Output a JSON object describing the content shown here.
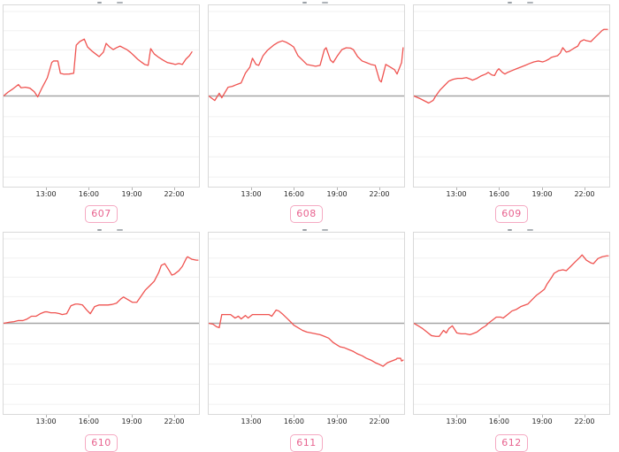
{
  "window": {
    "background": "#ffffff"
  },
  "colors": {
    "line": "#ef5350",
    "baseline": "#a6a6a6",
    "grid_line": "#f0f0f0",
    "plot_border": "#d9d9d9",
    "tick": "#b3b3b3",
    "tick_label": "#262626",
    "badge_text": "#e8638f",
    "badge_border": "#f5a9c2",
    "clipped_title_mark": "#9aa0a6"
  },
  "x_axis": {
    "tick_labels": [
      "13:00",
      "16:00",
      "19:00",
      "22:00"
    ],
    "tick_positions_pct": [
      22,
      43.7,
      65.5,
      87
    ],
    "x_range_estimate": [
      "10:00",
      "23:30"
    ]
  },
  "plot": {
    "grid_lines_pct": [
      3.4,
      14,
      24.6,
      35.3,
      61.4,
      72.5,
      83.6,
      94.7
    ],
    "baseline_pct": 50
  },
  "chart_data": [
    {
      "type": "line",
      "badge": "607",
      "title": "",
      "xlabel": "",
      "ylabel": "",
      "baseline_value": 0,
      "y_unit": "relative move vs. unlabeled baseline (% of plot height)",
      "points": [
        [
          0,
          0
        ],
        [
          2.2,
          2
        ],
        [
          4.9,
          4
        ],
        [
          7.6,
          6.3
        ],
        [
          9,
          4.5
        ],
        [
          11.2,
          4.8
        ],
        [
          13.5,
          4.3
        ],
        [
          15.7,
          2.4
        ],
        [
          17.5,
          -0.5
        ],
        [
          19.7,
          4.5
        ],
        [
          22.4,
          10
        ],
        [
          24.7,
          18.5
        ],
        [
          25.6,
          19.3
        ],
        [
          27.8,
          19.3
        ],
        [
          29.1,
          12.5
        ],
        [
          30.9,
          12
        ],
        [
          33.6,
          12.1
        ],
        [
          35.9,
          12.5
        ],
        [
          37.2,
          28
        ],
        [
          39,
          30
        ],
        [
          41.3,
          31.4
        ],
        [
          43,
          27
        ],
        [
          45.3,
          24.7
        ],
        [
          47.1,
          23.2
        ],
        [
          48.9,
          21.7
        ],
        [
          51.1,
          24.2
        ],
        [
          52.5,
          29
        ],
        [
          54.3,
          27
        ],
        [
          56.1,
          25.6
        ],
        [
          57.8,
          26.6
        ],
        [
          59.6,
          27.5
        ],
        [
          61.4,
          26.5
        ],
        [
          63.2,
          25.5
        ],
        [
          65,
          24
        ],
        [
          66.8,
          22.2
        ],
        [
          68.6,
          20.3
        ],
        [
          70.4,
          18.8
        ],
        [
          72.2,
          17.4
        ],
        [
          74,
          16.9
        ],
        [
          75.3,
          26.1
        ],
        [
          77.1,
          23.2
        ],
        [
          79.4,
          21.3
        ],
        [
          81.6,
          19.8
        ],
        [
          83.9,
          18.4
        ],
        [
          86.1,
          17.9
        ],
        [
          87.9,
          17.4
        ],
        [
          89.7,
          17.9
        ],
        [
          91.5,
          17.4
        ],
        [
          93.3,
          20.3
        ],
        [
          95.1,
          22.2
        ],
        [
          96.4,
          24.3
        ]
      ]
    },
    {
      "type": "line",
      "badge": "608",
      "title": "",
      "xlabel": "",
      "ylabel": "",
      "baseline_value": 0,
      "y_unit": "relative move vs. unlabeled baseline (% of plot height)",
      "points": [
        [
          0,
          0
        ],
        [
          3.1,
          -2.5
        ],
        [
          5.4,
          1.5
        ],
        [
          6.7,
          -1
        ],
        [
          9.9,
          4.8
        ],
        [
          12.1,
          5.3
        ],
        [
          14.3,
          6.3
        ],
        [
          16.6,
          7.2
        ],
        [
          18.8,
          12.6
        ],
        [
          21.1,
          16
        ],
        [
          22.4,
          20.8
        ],
        [
          24.2,
          17.4
        ],
        [
          25.6,
          16.9
        ],
        [
          27.8,
          22.2
        ],
        [
          30,
          25.1
        ],
        [
          33.2,
          28
        ],
        [
          35.4,
          29.5
        ],
        [
          37.7,
          30.4
        ],
        [
          39.9,
          29.5
        ],
        [
          42.2,
          28
        ],
        [
          43.5,
          27
        ],
        [
          45.7,
          22.2
        ],
        [
          48,
          19.8
        ],
        [
          50.2,
          17.4
        ],
        [
          52.5,
          16.9
        ],
        [
          54.7,
          16.4
        ],
        [
          57,
          16.9
        ],
        [
          59.2,
          25.6
        ],
        [
          60.1,
          26.6
        ],
        [
          62.3,
          19.8
        ],
        [
          63.7,
          18.4
        ],
        [
          65.9,
          22.2
        ],
        [
          68.2,
          25.6
        ],
        [
          70.4,
          26.6
        ],
        [
          72.6,
          26.4
        ],
        [
          74,
          25.6
        ],
        [
          76.2,
          21.7
        ],
        [
          78.5,
          19.3
        ],
        [
          80.7,
          18.4
        ],
        [
          83,
          17.4
        ],
        [
          85.2,
          16.9
        ],
        [
          87.4,
          8.7
        ],
        [
          88.3,
          7.7
        ],
        [
          90.6,
          17.4
        ],
        [
          92.8,
          16
        ],
        [
          95.1,
          14.5
        ],
        [
          96.4,
          12.1
        ],
        [
          98.7,
          18.4
        ],
        [
          99.5,
          26.6
        ]
      ]
    },
    {
      "type": "line",
      "badge": "609",
      "title": "",
      "xlabel": "",
      "ylabel": "",
      "baseline_value": 0,
      "y_unit": "relative move vs. unlabeled baseline (% of plot height)",
      "points": [
        [
          0,
          0
        ],
        [
          3.1,
          -1.4
        ],
        [
          7.6,
          -3.9
        ],
        [
          9.9,
          -2.4
        ],
        [
          11.2,
          0
        ],
        [
          13.5,
          3.4
        ],
        [
          15.7,
          5.8
        ],
        [
          17.9,
          8.2
        ],
        [
          20.2,
          9.2
        ],
        [
          22.4,
          9.7
        ],
        [
          24.7,
          9.7
        ],
        [
          26.9,
          10.1
        ],
        [
          29.1,
          9.2
        ],
        [
          30,
          8.7
        ],
        [
          32.3,
          9.7
        ],
        [
          34.5,
          11.1
        ],
        [
          36.8,
          12.1
        ],
        [
          38.1,
          13
        ],
        [
          39.9,
          11.6
        ],
        [
          41.3,
          11.3
        ],
        [
          42.6,
          14
        ],
        [
          43.5,
          15
        ],
        [
          45.3,
          13
        ],
        [
          46.6,
          12.1
        ],
        [
          48,
          13
        ],
        [
          50.2,
          14
        ],
        [
          52.5,
          15
        ],
        [
          54.7,
          15.9
        ],
        [
          57,
          16.9
        ],
        [
          59.2,
          17.9
        ],
        [
          61.4,
          18.8
        ],
        [
          63.7,
          19.3
        ],
        [
          65.9,
          18.8
        ],
        [
          67.3,
          19.3
        ],
        [
          69.1,
          20.3
        ],
        [
          70.4,
          21.3
        ],
        [
          71.7,
          21.7
        ],
        [
          73.5,
          22.2
        ],
        [
          74.9,
          23.7
        ],
        [
          76.2,
          26.6
        ],
        [
          78,
          24.2
        ],
        [
          79.4,
          24.6
        ],
        [
          81.6,
          26.1
        ],
        [
          83.9,
          27.5
        ],
        [
          85.2,
          30
        ],
        [
          87,
          31
        ],
        [
          88.3,
          30.5
        ],
        [
          90.6,
          30
        ],
        [
          92.8,
          32.4
        ],
        [
          95.1,
          34.8
        ],
        [
          96.4,
          36.2
        ],
        [
          97.3,
          36.7
        ],
        [
          99.1,
          36.7
        ]
      ]
    },
    {
      "type": "line",
      "badge": "610",
      "title": "",
      "xlabel": "",
      "ylabel": "",
      "baseline_value": 0,
      "y_unit": "relative move vs. unlabeled baseline (% of plot height)",
      "points": [
        [
          0,
          0
        ],
        [
          3.1,
          0.6
        ],
        [
          5.4,
          0.9
        ],
        [
          7.6,
          1.5
        ],
        [
          9.9,
          1.5
        ],
        [
          12.1,
          2.4
        ],
        [
          14.3,
          3.9
        ],
        [
          16.6,
          3.9
        ],
        [
          18.8,
          5.3
        ],
        [
          21.1,
          6.3
        ],
        [
          22.4,
          6.3
        ],
        [
          24.2,
          5.8
        ],
        [
          26.5,
          5.8
        ],
        [
          28.7,
          5.3
        ],
        [
          30,
          4.8
        ],
        [
          32.3,
          5.3
        ],
        [
          34.5,
          9.7
        ],
        [
          36.8,
          10.6
        ],
        [
          38.1,
          10.6
        ],
        [
          40.4,
          10.1
        ],
        [
          42.6,
          7.3
        ],
        [
          44.4,
          5.3
        ],
        [
          46.6,
          9.2
        ],
        [
          48.9,
          10.1
        ],
        [
          51.1,
          10.1
        ],
        [
          53.4,
          10.1
        ],
        [
          55.6,
          10.4
        ],
        [
          57.8,
          11.1
        ],
        [
          60.1,
          13.5
        ],
        [
          61.4,
          14.5
        ],
        [
          63.7,
          13
        ],
        [
          65.9,
          11.6
        ],
        [
          68.2,
          11.6
        ],
        [
          72.6,
          18.4
        ],
        [
          74.9,
          20.8
        ],
        [
          77.1,
          23.2
        ],
        [
          79.4,
          28
        ],
        [
          80.7,
          31.9
        ],
        [
          82.5,
          32.9
        ],
        [
          84.8,
          29
        ],
        [
          86.1,
          26.6
        ],
        [
          87.4,
          27.1
        ],
        [
          89.7,
          29
        ],
        [
          91.5,
          31.4
        ],
        [
          93.7,
          36.2
        ],
        [
          94.2,
          36.7
        ],
        [
          96.4,
          35.3
        ],
        [
          98.7,
          34.8
        ],
        [
          99.5,
          34.8
        ]
      ]
    },
    {
      "type": "line",
      "badge": "611",
      "title": "",
      "xlabel": "",
      "ylabel": "",
      "baseline_value": 0,
      "y_unit": "relative move vs. unlabeled baseline (% of plot height)",
      "points": [
        [
          0,
          0
        ],
        [
          2.2,
          -0.5
        ],
        [
          4,
          -1.9
        ],
        [
          5.4,
          -2.4
        ],
        [
          6.7,
          4.8
        ],
        [
          9,
          4.8
        ],
        [
          11.2,
          4.8
        ],
        [
          13.5,
          2.9
        ],
        [
          15.2,
          3.9
        ],
        [
          16.6,
          2.4
        ],
        [
          18.8,
          4.3
        ],
        [
          20.2,
          2.9
        ],
        [
          22.4,
          4.8
        ],
        [
          24.7,
          4.8
        ],
        [
          26.9,
          4.8
        ],
        [
          29.1,
          4.8
        ],
        [
          30.9,
          4.8
        ],
        [
          32.3,
          3.9
        ],
        [
          34.5,
          7.3
        ],
        [
          35.9,
          6.8
        ],
        [
          38.1,
          4.8
        ],
        [
          40.4,
          2.4
        ],
        [
          42.2,
          0.5
        ],
        [
          43.5,
          -1
        ],
        [
          45.7,
          -2.4
        ],
        [
          48,
          -3.9
        ],
        [
          50.2,
          -4.8
        ],
        [
          52.5,
          -5.3
        ],
        [
          54.7,
          -5.8
        ],
        [
          57,
          -6.3
        ],
        [
          59.2,
          -7.2
        ],
        [
          61.4,
          -8.2
        ],
        [
          63.7,
          -10.6
        ],
        [
          65.9,
          -12.1
        ],
        [
          67.3,
          -13
        ],
        [
          69.5,
          -13.5
        ],
        [
          71.7,
          -14.5
        ],
        [
          74,
          -15.5
        ],
        [
          76.2,
          -16.9
        ],
        [
          78.5,
          -17.9
        ],
        [
          80.7,
          -19.3
        ],
        [
          83,
          -20.3
        ],
        [
          85.2,
          -21.7
        ],
        [
          87.4,
          -22.7
        ],
        [
          89.2,
          -23.7
        ],
        [
          91.5,
          -21.7
        ],
        [
          93.7,
          -20.8
        ],
        [
          96,
          -19.8
        ],
        [
          96.4,
          -19.3
        ],
        [
          98.2,
          -19.3
        ],
        [
          98.7,
          -20.8
        ],
        [
          99.5,
          -20.3
        ]
      ]
    },
    {
      "type": "line",
      "badge": "612",
      "title": "",
      "xlabel": "",
      "ylabel": "",
      "baseline_value": 0,
      "y_unit": "relative move vs. unlabeled baseline (% of plot height)",
      "points": [
        [
          0,
          0
        ],
        [
          2.2,
          -1.4
        ],
        [
          4.5,
          -2.9
        ],
        [
          6.7,
          -4.8
        ],
        [
          9,
          -6.8
        ],
        [
          11.2,
          -7.2
        ],
        [
          13,
          -7.2
        ],
        [
          15.2,
          -3.9
        ],
        [
          16.6,
          -5.3
        ],
        [
          17.9,
          -2.9
        ],
        [
          19.7,
          -1.4
        ],
        [
          22,
          -5.3
        ],
        [
          24.2,
          -5.8
        ],
        [
          26.5,
          -5.8
        ],
        [
          28.7,
          -6.3
        ],
        [
          30,
          -5.8
        ],
        [
          32.3,
          -4.8
        ],
        [
          34.5,
          -2.9
        ],
        [
          36.8,
          -1.4
        ],
        [
          38.1,
          0
        ],
        [
          40.4,
          1.9
        ],
        [
          42.2,
          3.4
        ],
        [
          44.4,
          3.4
        ],
        [
          45.7,
          2.9
        ],
        [
          48,
          4.8
        ],
        [
          50.2,
          6.8
        ],
        [
          52.5,
          7.7
        ],
        [
          54.7,
          9.2
        ],
        [
          57,
          10.1
        ],
        [
          58.3,
          10.6
        ],
        [
          60.5,
          13
        ],
        [
          62.8,
          15.5
        ],
        [
          64.6,
          16.9
        ],
        [
          66.8,
          18.8
        ],
        [
          68.2,
          21.7
        ],
        [
          70.4,
          25.1
        ],
        [
          71.7,
          27.5
        ],
        [
          74,
          29
        ],
        [
          76.2,
          29.5
        ],
        [
          78,
          29
        ],
        [
          80.3,
          31.4
        ],
        [
          82.5,
          33.8
        ],
        [
          84.8,
          36.2
        ],
        [
          86.1,
          37.7
        ],
        [
          88.3,
          34.8
        ],
        [
          90.6,
          33.3
        ],
        [
          91.9,
          32.9
        ],
        [
          94.2,
          35.7
        ],
        [
          96.4,
          36.7
        ],
        [
          98.7,
          37.2
        ],
        [
          99.5,
          37.2
        ]
      ]
    }
  ]
}
